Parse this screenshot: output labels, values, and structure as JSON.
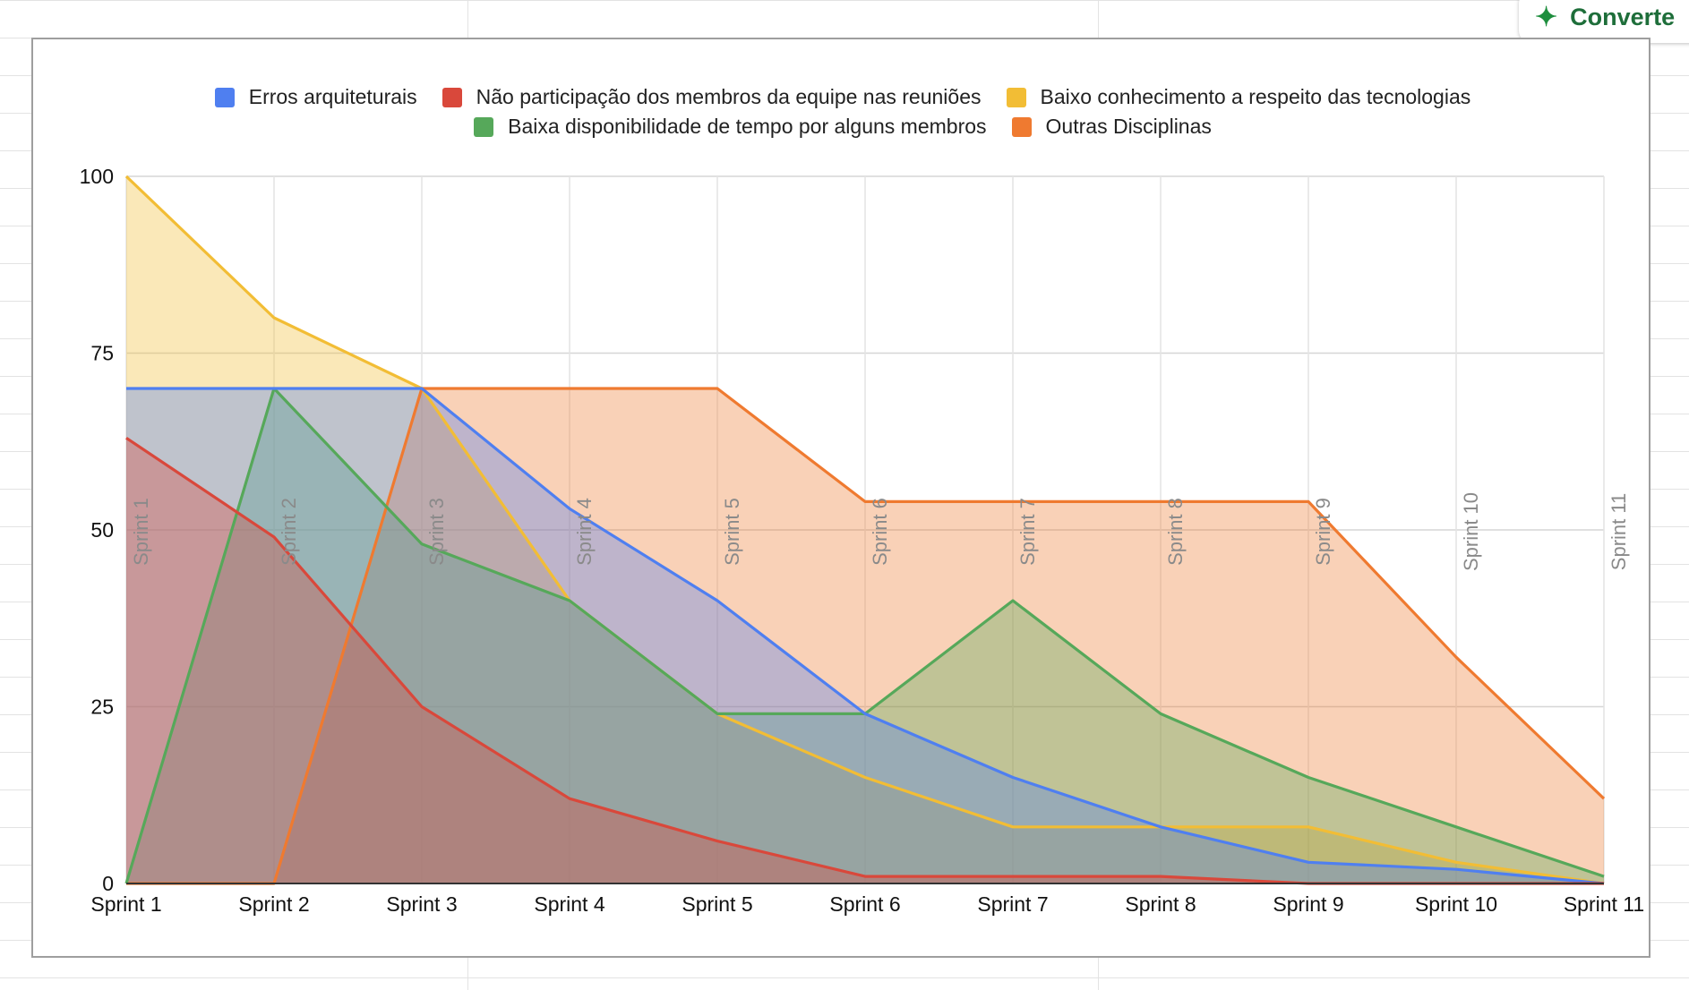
{
  "toolbar": {
    "convert_label": "Converte",
    "convert_icon": "sparkle-icon"
  },
  "chart_data": {
    "type": "area",
    "title": "",
    "xlabel": "",
    "ylabel": "",
    "ylim": [
      0,
      100
    ],
    "y_ticks": [
      "0",
      "25",
      "50",
      "75",
      "100"
    ],
    "grid": true,
    "legend_position": "top",
    "categories": [
      "Sprint 1",
      "Sprint 2",
      "Sprint 3",
      "Sprint 4",
      "Sprint 5",
      "Sprint 6",
      "Sprint 7",
      "Sprint 8",
      "Sprint 9",
      "Sprint 10",
      "Sprint 11"
    ],
    "vertical_labels": [
      "Sprint 1",
      "Sprint 2",
      "Sprint 3",
      "Sprint 4",
      "Sprint 5",
      "Sprint 6",
      "Sprint 7",
      "Sprint 8",
      "Sprint 9",
      "Sprint 10",
      "Sprint 11"
    ],
    "series": [
      {
        "name": "Erros arquiteturais",
        "color": "#4f7ff0",
        "values": [
          70,
          70,
          70,
          53,
          40,
          24,
          15,
          8,
          3,
          2,
          0
        ]
      },
      {
        "name": "Não participação dos membros da equipe nas reuniões",
        "color": "#d9483b",
        "values": [
          63,
          49,
          25,
          12,
          6,
          1,
          1,
          1,
          0,
          0,
          0
        ]
      },
      {
        "name": "Baixo conhecimento a respeito das tecnologias",
        "color": "#f2bd35",
        "values": [
          100,
          80,
          70,
          40,
          24,
          15,
          8,
          8,
          8,
          3,
          0
        ]
      },
      {
        "name": "Baixa disponibilidade de tempo por alguns membros",
        "color": "#56a85a",
        "values": [
          0,
          70,
          48,
          40,
          24,
          24,
          40,
          24,
          15,
          8,
          1
        ]
      },
      {
        "name": "Outras Disciplinas",
        "color": "#ef7a30",
        "values": [
          0,
          0,
          70,
          70,
          70,
          54,
          54,
          54,
          54,
          32,
          12
        ]
      }
    ]
  }
}
